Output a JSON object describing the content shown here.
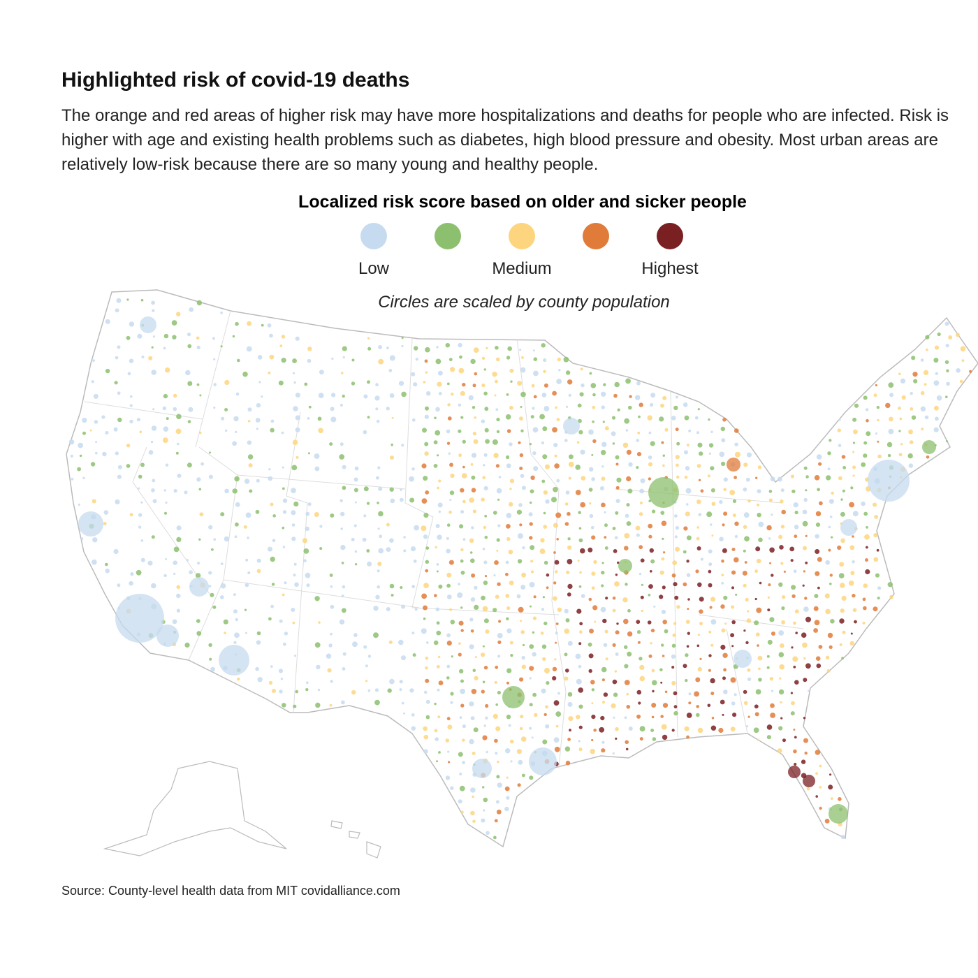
{
  "header": {
    "title": "Highlighted risk of covid-19 deaths",
    "description": "The orange and red areas of higher risk may have more hospitalizations and deaths for people who are infected. Risk is higher with age and existing health problems such as diabetes, high blood pressure and obesity. Most urban areas are relatively low-risk because there are so many young and healthy people."
  },
  "legend": {
    "title": "Localized risk score based on older and sicker people",
    "items": [
      {
        "color": "#c6dbef",
        "label": "Low"
      },
      {
        "color": "#8cc06e"
      },
      {
        "color": "#fdd57e",
        "label": "Medium"
      },
      {
        "color": "#e07b39"
      },
      {
        "color": "#7a1f22",
        "label": "Highest"
      }
    ],
    "note": "Circles are scaled by county population"
  },
  "source": "Source: County-level health data from MIT covidalliance.com"
}
